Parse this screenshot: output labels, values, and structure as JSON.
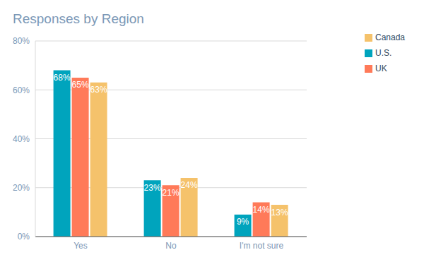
{
  "chart_data": {
    "type": "bar",
    "title": "Responses by Region",
    "categories": [
      "Yes",
      "No",
      "I'm not sure"
    ],
    "series": [
      {
        "name": "U.S.",
        "color": "#00a4bd",
        "values": [
          68,
          23,
          9
        ],
        "value_labels": [
          "68%",
          "23%",
          "9%"
        ]
      },
      {
        "name": "UK",
        "color": "#ff7a59",
        "values": [
          65,
          21,
          14
        ],
        "value_labels": [
          "65%",
          "21%",
          "14%"
        ]
      },
      {
        "name": "Canada",
        "color": "#f5c26b",
        "values": [
          63,
          24,
          13
        ],
        "value_labels": [
          "63%",
          "24%",
          "13%"
        ]
      }
    ],
    "ylim": [
      0,
      80
    ],
    "yticks": [
      {
        "value": 0,
        "label": "0%"
      },
      {
        "value": 20,
        "label": "20%"
      },
      {
        "value": 40,
        "label": "40%"
      },
      {
        "value": 60,
        "label": "60%"
      },
      {
        "value": 80,
        "label": "80%"
      }
    ],
    "grid": true,
    "legend": "right",
    "data_labels": true
  }
}
